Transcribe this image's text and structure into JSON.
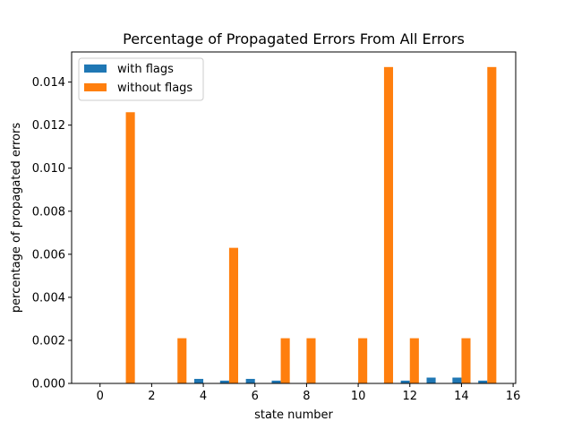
{
  "chart_data": {
    "type": "bar",
    "title": "Percentage of Propagated Errors From All Errors",
    "xlabel": "state number",
    "ylabel": "percentage of propagated errors",
    "x": [
      0,
      1,
      2,
      3,
      4,
      5,
      6,
      7,
      8,
      9,
      10,
      11,
      12,
      13,
      14,
      15
    ],
    "series": [
      {
        "name": "with flags",
        "color": "#1f77b4",
        "values": [
          0,
          0,
          0,
          0,
          0.00021,
          0.00013,
          0.00021,
          0.00013,
          0,
          0,
          0,
          0,
          0.00013,
          0.00027,
          0.00027,
          0.00013
        ]
      },
      {
        "name": "without flags",
        "color": "#ff7f0e",
        "values": [
          0,
          0.0126,
          0,
          0.0021,
          0,
          0.0063,
          0,
          0.0021,
          0.0021,
          0,
          0.0021,
          0.0147,
          0.0021,
          0,
          0.0021,
          0.0147
        ]
      }
    ],
    "xlim": [
      -1.1,
      16.1
    ],
    "ylim": [
      0,
      0.0154
    ],
    "xticks": [
      {
        "value": 0,
        "label": "0"
      },
      {
        "value": 2,
        "label": "2"
      },
      {
        "value": 4,
        "label": "4"
      },
      {
        "value": 6,
        "label": "6"
      },
      {
        "value": 8,
        "label": "8"
      },
      {
        "value": 10,
        "label": "10"
      },
      {
        "value": 12,
        "label": "12"
      },
      {
        "value": 14,
        "label": "14"
      },
      {
        "value": 16,
        "label": "16"
      }
    ],
    "yticks": [
      {
        "value": 0,
        "label": "0.000"
      },
      {
        "value": 0.002,
        "label": "0.002"
      },
      {
        "value": 0.004,
        "label": "0.004"
      },
      {
        "value": 0.006,
        "label": "0.006"
      },
      {
        "value": 0.008,
        "label": "0.008"
      },
      {
        "value": 0.01,
        "label": "0.010"
      },
      {
        "value": 0.012,
        "label": "0.012"
      },
      {
        "value": 0.014,
        "label": "0.014"
      }
    ],
    "grid": false,
    "legend_position": "top-left"
  }
}
